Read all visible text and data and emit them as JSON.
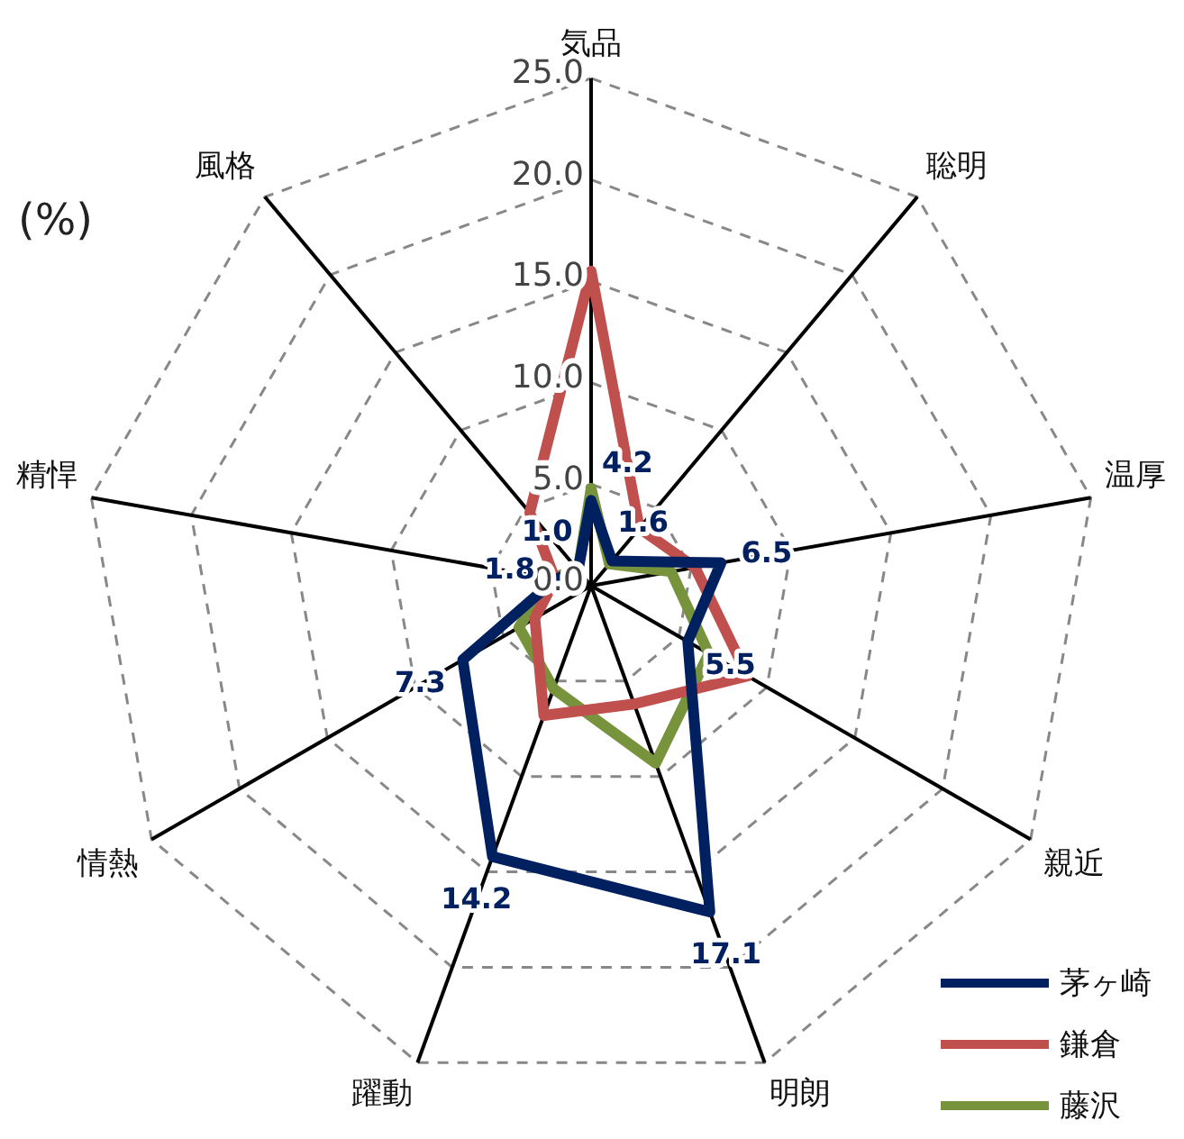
{
  "chart_data": {
    "type": "radar",
    "ylabel": "(%)",
    "categories": [
      "気品",
      "聡明",
      "温厚",
      "親近",
      "明朗",
      "躍動",
      "情熱",
      "精悍",
      "風格"
    ],
    "ylim": [
      0,
      25
    ],
    "yticks": [
      {
        "value": 0,
        "label": "0.0"
      },
      {
        "value": 5,
        "label": "5.0"
      },
      {
        "value": 10,
        "label": "10.0"
      },
      {
        "value": 15,
        "label": "15.0"
      },
      {
        "value": 20,
        "label": "20.0"
      },
      {
        "value": 25,
        "label": "25.0"
      }
    ],
    "grid": true,
    "legend": "bottom right",
    "marker": "none",
    "series": [
      {
        "name": "茅ヶ崎",
        "color": "#002060",
        "values": [
          4.2,
          1.6,
          6.5,
          5.5,
          17.1,
          14.2,
          7.3,
          1.8,
          1.0
        ],
        "value_labels": [
          "4.2",
          "1.6",
          "6.5",
          "5.5",
          "17.1",
          "14.2",
          "7.3",
          "1.8",
          "1.0"
        ]
      },
      {
        "name": "鎌倉",
        "color": "#c0504d",
        "values": [
          15.5,
          3.7,
          5.2,
          8.9,
          6.2,
          6.8,
          3.2,
          1.8,
          4.7
        ]
      },
      {
        "name": "藤沢",
        "color": "#77933c",
        "values": [
          4.8,
          1.4,
          4.0,
          6.7,
          9.3,
          5.4,
          4.1,
          2.1,
          1.0
        ]
      }
    ]
  }
}
